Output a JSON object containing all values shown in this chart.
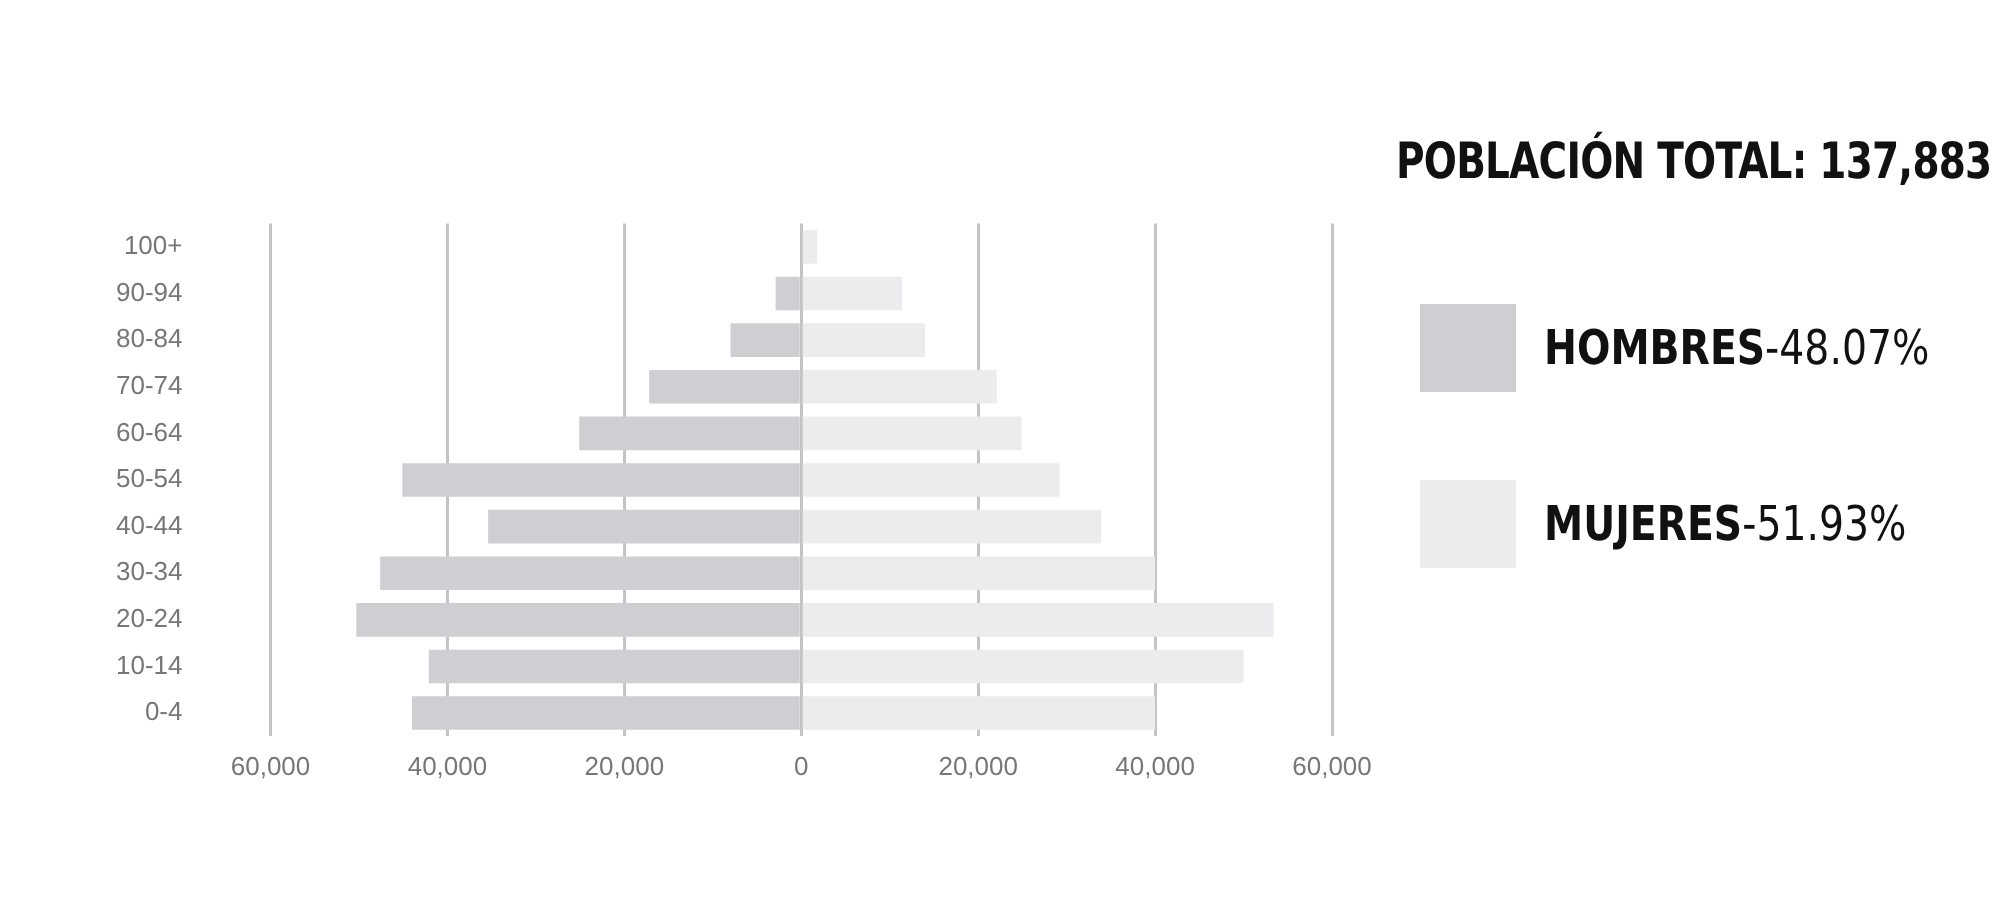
{
  "chart_data": {
    "type": "bar",
    "orientation": "horizontal",
    "stacked": true,
    "title": "POBLACIÓN TOTAL: 137,883",
    "categories": [
      "100+",
      "90-94",
      "80-84",
      "70-74",
      "60-64",
      "50-54",
      "40-44",
      "30-34",
      "20-24",
      "10-14",
      "0-4"
    ],
    "series": [
      {
        "name": "HOMBRES",
        "color": "#cfcfd3",
        "values": [
          null,
          -2900,
          -8000,
          -17200,
          -25100,
          -45100,
          -35400,
          -47600,
          -50300,
          -42100,
          -44000
        ]
      },
      {
        "name": "MUJERES",
        "color": "#ececee",
        "values": [
          1800,
          11400,
          14000,
          22100,
          24900,
          29200,
          33900,
          40000,
          53400,
          50000,
          40000
        ]
      }
    ],
    "annotations": [
      "-48.07%",
      "-51.93%"
    ],
    "xlim": [
      -60000,
      60000
    ],
    "xticks": [
      {
        "value": -60000,
        "label": "60,000"
      },
      {
        "value": -40000,
        "label": "40,000"
      },
      {
        "value": -20000,
        "label": "20,000"
      },
      0,
      {
        "value": 20000,
        "label": "20,000"
      },
      {
        "value": 40000,
        "label": "40,000"
      },
      {
        "value": 60000,
        "label": "60,000"
      }
    ],
    "grid": "x",
    "legend": "right"
  }
}
